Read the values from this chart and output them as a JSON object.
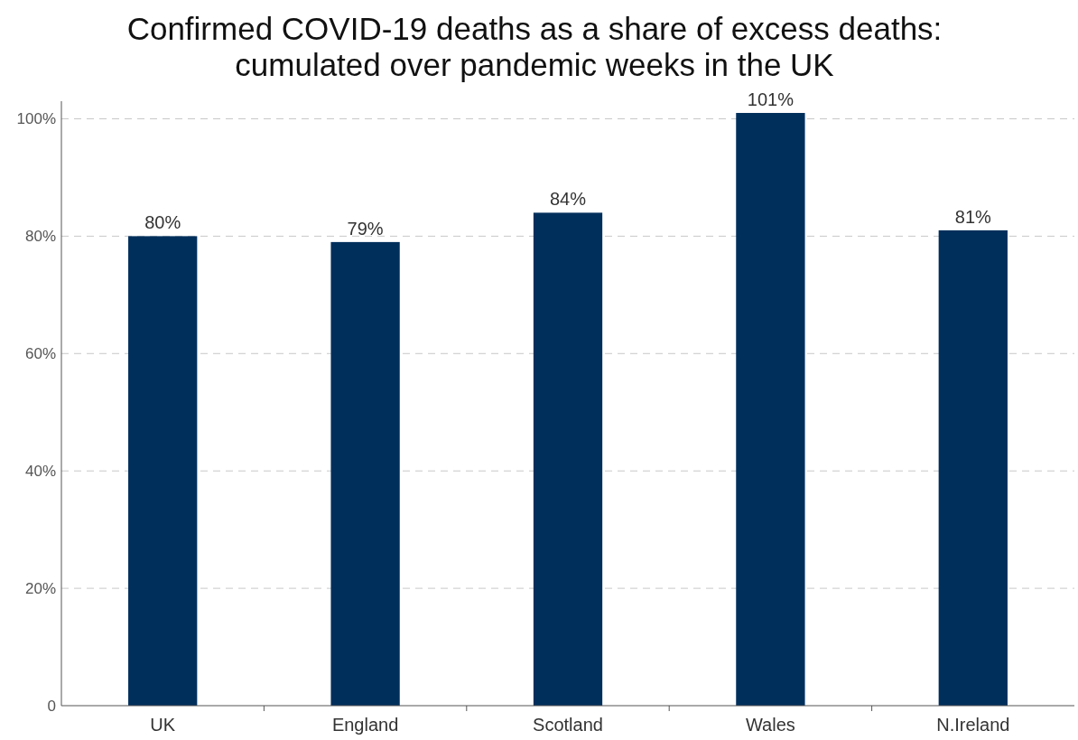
{
  "chart_data": {
    "type": "bar",
    "title": "Confirmed COVID-19 deaths as a share of excess deaths:\ncumulated over pandemic weeks in the UK",
    "categories": [
      "UK",
      "England",
      "Scotland",
      "Wales",
      "N.Ireland"
    ],
    "values": [
      80,
      79,
      84,
      101,
      81
    ],
    "value_labels": [
      "80%",
      "79%",
      "84%",
      "101%",
      "81%"
    ],
    "color": "#002f5c",
    "ylim": [
      0,
      103
    ],
    "yticks": [
      0,
      {
        "value": 20,
        "label": "20%"
      },
      {
        "value": 40,
        "label": "40%"
      },
      {
        "value": 60,
        "label": "60%"
      },
      {
        "value": 80,
        "label": "80%"
      },
      {
        "value": 100,
        "label": "100%"
      }
    ],
    "grid": "y",
    "line_style": "dashed"
  }
}
